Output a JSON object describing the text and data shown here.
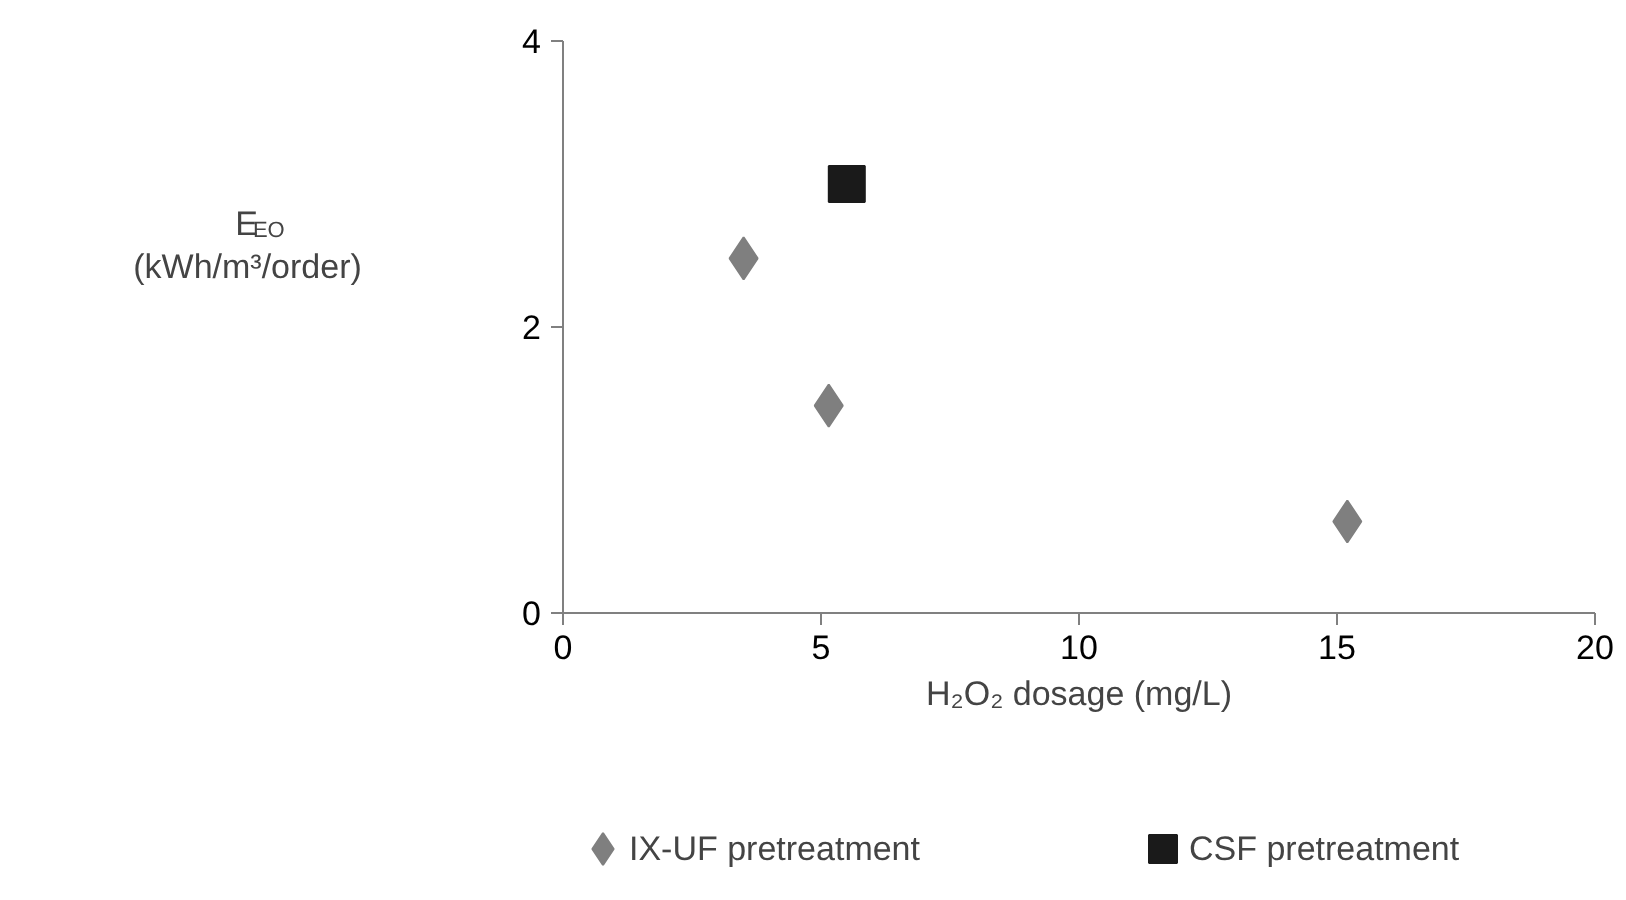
{
  "chart_data": {
    "type": "scatter",
    "xlabel": "H₂O₂ dosage (mg/L)",
    "ylabel": "E$_{EO}$\n(kWh/m³/order)",
    "xlim": [
      0,
      20
    ],
    "xticks": [
      0,
      5,
      10,
      15,
      20
    ],
    "ylim": [
      0,
      4
    ],
    "yticks": [
      0,
      2,
      4
    ],
    "grid": false,
    "legend": "bottom",
    "series": [
      {
        "name": "IX-UF pretreatment",
        "color": "#7f7f7f",
        "marker": "diamond",
        "x": [
          3.5,
          5.15,
          15.2
        ],
        "values": [
          2.48,
          1.45,
          0.64
        ]
      },
      {
        "name": "CSF pretreatment",
        "color": "#1a1a1a",
        "marker": "square",
        "x": [
          5.5
        ],
        "values": [
          3.0
        ]
      }
    ]
  }
}
